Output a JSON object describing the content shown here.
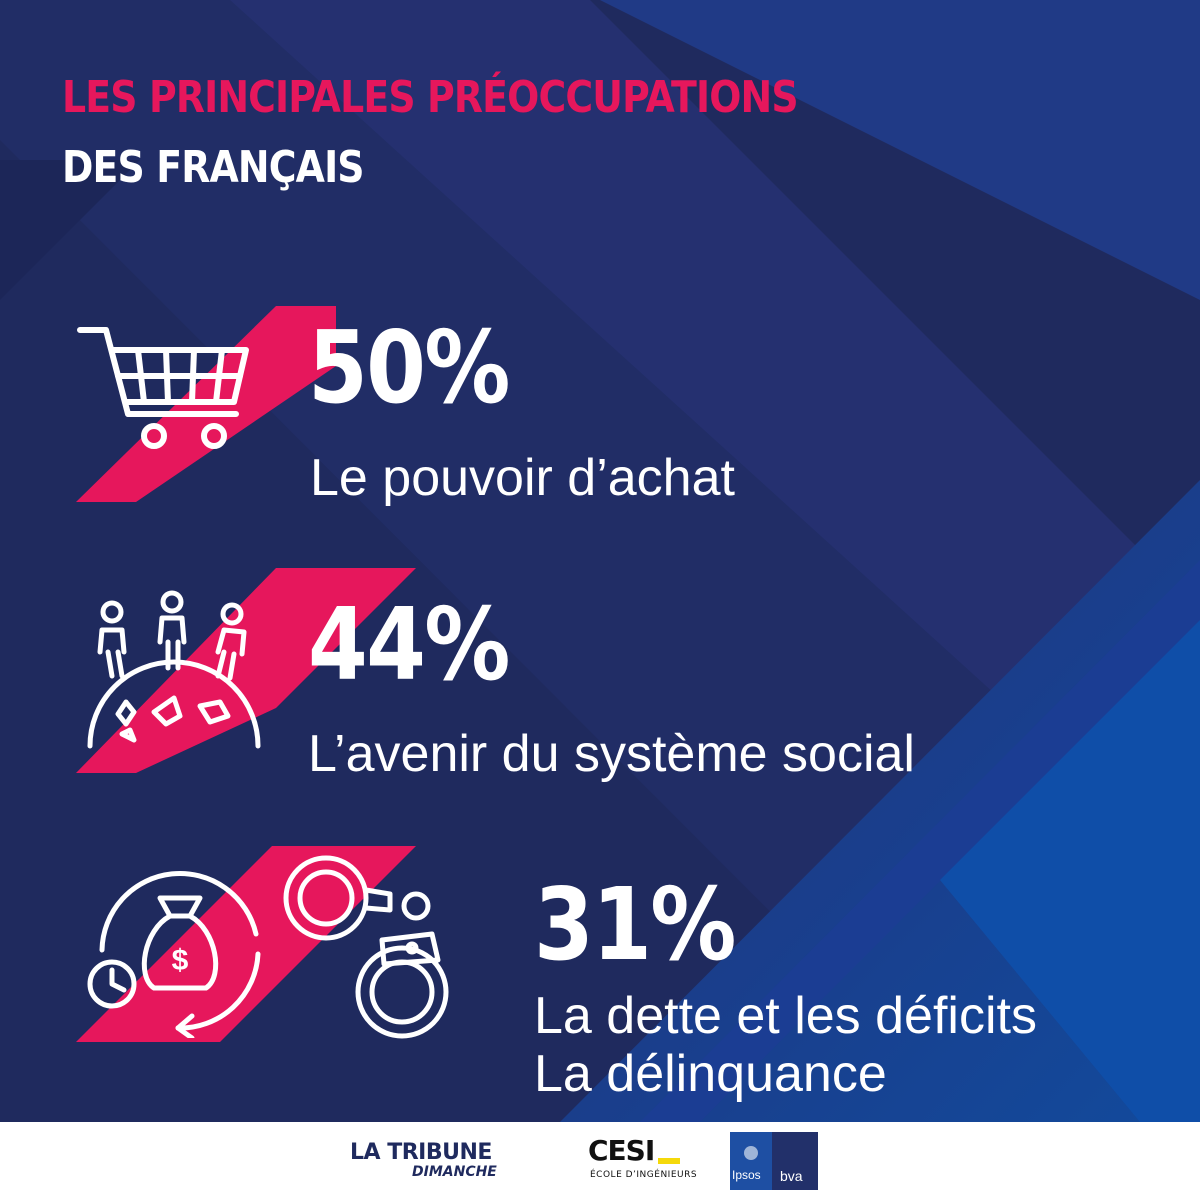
{
  "title": {
    "line1": "LES PRINCIPALES PRÉOCCUPATIONS",
    "line2": "DES FRANÇAIS"
  },
  "stats": [
    {
      "value": "50%",
      "labels": [
        "Le pouvoir d’achat"
      ],
      "icon": "shopping-cart-icon"
    },
    {
      "value": "44%",
      "labels": [
        "L’avenir du système social"
      ],
      "icon": "people-on-globe-icon"
    },
    {
      "value": "31%",
      "labels": [
        "La dette et les déficits",
        "La délinquance"
      ],
      "icons": [
        "money-bag-cycle-icon",
        "handcuffs-icon"
      ]
    }
  ],
  "footer": {
    "logos": {
      "tribune_main": "LA TRIBUNE",
      "tribune_sub": "DIMANCHE",
      "cesi_main": "CESI",
      "cesi_sub": "ÉCOLE D’INGÉNIEURS",
      "ipsos": "Ipsos",
      "bva": "bva"
    }
  },
  "colors": {
    "background": "#1f2a5e",
    "accent": "#e6175c",
    "text": "#ffffff"
  }
}
